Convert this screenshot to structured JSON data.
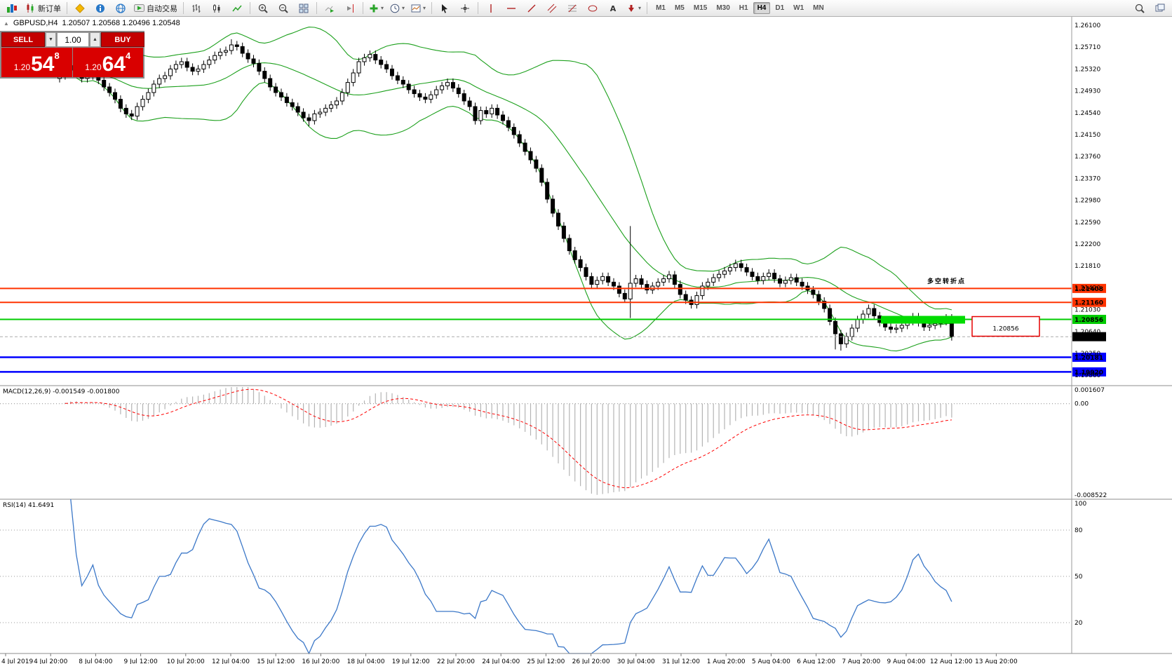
{
  "toolbar": {
    "new_order_label": "新订单",
    "autotrading_label": "自动交易",
    "timeframes": [
      "M1",
      "M5",
      "M15",
      "M30",
      "H1",
      "H4",
      "D1",
      "W1",
      "MN"
    ],
    "active_timeframe": "H4",
    "items": [
      {
        "icon": "app-icon",
        "name": "app-icon",
        "deco": true
      },
      {
        "icon": "new-order-icon",
        "name": "new-order-button",
        "label": "新订单"
      },
      {
        "sep": true
      },
      {
        "icon": "alert-icon",
        "name": "alert-icon-button"
      },
      {
        "icon": "news-icon",
        "name": "news-icon-button"
      },
      {
        "icon": "community-icon",
        "name": "community-icon-button"
      },
      {
        "icon": "autotrading-icon",
        "name": "autotrading-button",
        "label": "自动交易"
      },
      {
        "sep": true
      },
      {
        "icon": "bar-chart-icon",
        "name": "bar-chart-button"
      },
      {
        "icon": "candle-chart-icon",
        "name": "candlestick-chart-button"
      },
      {
        "icon": "line-chart-icon",
        "name": "line-chart-button"
      },
      {
        "sep": true
      },
      {
        "icon": "zoom-in-icon",
        "name": "zoom-in-button"
      },
      {
        "icon": "zoom-out-icon",
        "name": "zoom-out-button"
      },
      {
        "icon": "tile-windows-icon",
        "name": "tile-windows-button"
      },
      {
        "sep": true
      },
      {
        "icon": "auto-scroll-icon",
        "name": "auto-scroll-button"
      },
      {
        "icon": "chart-shift-icon",
        "name": "chart-shift-button"
      },
      {
        "sep": true
      },
      {
        "icon": "indicators-icon",
        "name": "indicators-button",
        "dd": true
      },
      {
        "icon": "periods-icon",
        "name": "periods-button",
        "dd": true
      },
      {
        "icon": "template-icon",
        "name": "templates-button",
        "dd": true
      },
      {
        "sep": true
      },
      {
        "icon": "cursor-icon",
        "name": "cursor-button"
      },
      {
        "icon": "crosshair-icon",
        "name": "crosshair-button"
      },
      {
        "sep": true
      },
      {
        "icon": "vline-icon",
        "name": "vertical-line-button"
      },
      {
        "icon": "hline-icon",
        "name": "horizontal-line-button"
      },
      {
        "icon": "trendline-icon",
        "name": "trendline-button"
      },
      {
        "icon": "channel-icon",
        "name": "channel-button"
      },
      {
        "icon": "fibo-icon",
        "name": "fibonacci-button"
      },
      {
        "icon": "shapes-icon",
        "name": "shapes-button"
      },
      {
        "icon": "text-icon",
        "name": "text-button"
      },
      {
        "icon": "arrows-icon",
        "name": "arrows-button",
        "dd": true
      },
      {
        "sep": true
      },
      {
        "tf": true
      },
      {
        "spacer": true
      },
      {
        "icon": "search-icon",
        "name": "search-button"
      },
      {
        "icon": "layout-icon",
        "name": "chart-layout-button"
      }
    ]
  },
  "chart": {
    "header": {
      "expander_glyph": "▲",
      "symbol": "GBPUSD,H4",
      "ohlc": "1.20507 1.20568 1.20496 1.20548"
    },
    "trade_panel": {
      "sell_label": "SELL",
      "buy_label": "BUY",
      "volume": "1.00",
      "spin_down_glyph": "▼",
      "spin_up_glyph": "▲",
      "sell_price_main": "1.20",
      "sell_price_big": "54",
      "sell_price_sup": "8",
      "buy_price_main": "1.20",
      "buy_price_big": "64",
      "buy_price_sup": "4",
      "button_color": "#C40000",
      "price_bg": "#D90000"
    },
    "annotation": {
      "text": "多空转折点",
      "color": "#00B400"
    },
    "callout": {
      "text": "1.20856",
      "color": "#E60000"
    },
    "highlight_box": {
      "value": 1.20856,
      "color": "#00DC00"
    },
    "levels": [
      {
        "value": 1.21408,
        "label": "1.21408",
        "color": "#FF3300",
        "width": 2
      },
      {
        "value": 1.2116,
        "label": "1.21160",
        "color": "#FF3300",
        "width": 2
      },
      {
        "value": 1.20856,
        "label": "1.20856",
        "color": "#00CC00",
        "width": 2
      },
      {
        "value": 1.20181,
        "label": "1.20181",
        "color": "#0000FF",
        "width": 2.5
      },
      {
        "value": 1.1992,
        "label": "1.19920",
        "color": "#0000FF",
        "width": 2.5
      }
    ],
    "current_price": {
      "value": 1.20548,
      "label": "1.20548"
    },
    "y_ticks": [
      "1.26100",
      "1.25710",
      "1.25320",
      "1.24930",
      "1.24540",
      "1.24150",
      "1.23760",
      "1.23370",
      "1.22980",
      "1.22590",
      "1.22200",
      "1.21810",
      "1.21420",
      "1.21030",
      "1.20640",
      "1.20250",
      "1.19860"
    ],
    "x_ticks": [
      "4 Jul 2019",
      "4 Jul 20:00",
      "8 Jul 04:00",
      "9 Jul 12:00",
      "10 Jul 20:00",
      "12 Jul 04:00",
      "15 Jul 12:00",
      "16 Jul 20:00",
      "18 Jul 04:00",
      "19 Jul 12:00",
      "22 Jul 20:00",
      "24 Jul 04:00",
      "25 Jul 12:00",
      "26 Jul 20:00",
      "30 Jul 04:00",
      "31 Jul 12:00",
      "1 Aug 20:00",
      "5 Aug 04:00",
      "6 Aug 12:00",
      "7 Aug 20:00",
      "9 Aug 04:00",
      "12 Aug 12:00",
      "13 Aug 20:00"
    ]
  },
  "macd": {
    "label": "MACD(12,26,9) -0.001549 -0.001800",
    "scale_top": "0.001607",
    "scale_zero": "0.00",
    "scale_bottom": "-0.008522",
    "top_value": 0.001607,
    "bottom_value": -0.008522
  },
  "rsi": {
    "label": "RSI(14) 41.6491",
    "scale": [
      "100",
      "80",
      "50",
      "20"
    ],
    "scale_values": [
      100,
      80,
      50,
      20
    ],
    "level_lines": [
      80,
      50,
      20
    ]
  },
  "chart_data": {
    "type": "candlestick",
    "symbol": "GBPUSD",
    "timeframe": "H4",
    "first_open": 1.2515,
    "default_wick": 0.0007,
    "closes": [
      1.252,
      1.253,
      1.2538,
      1.2528,
      1.2515,
      1.252,
      1.2528,
      1.2512,
      1.25,
      1.249,
      1.2478,
      1.2462,
      1.2452,
      1.2448,
      1.2465,
      1.2478,
      1.249,
      1.2505,
      1.2515,
      1.252,
      1.2532,
      1.254,
      1.2545,
      1.2535,
      1.2528,
      1.2532,
      1.254,
      1.2548,
      1.2556,
      1.2562,
      1.2565,
      1.2575,
      1.2572,
      1.256,
      1.255,
      1.2542,
      1.2528,
      1.2515,
      1.25,
      1.249,
      1.2482,
      1.2472,
      1.2465,
      1.2455,
      1.2445,
      1.244,
      1.2452,
      1.2455,
      1.2462,
      1.2468,
      1.2475,
      1.249,
      1.2508,
      1.2525,
      1.2545,
      1.2552,
      1.2558,
      1.2548,
      1.254,
      1.2532,
      1.252,
      1.2512,
      1.2505,
      1.2495,
      1.2488,
      1.2482,
      1.2478,
      1.2486,
      1.2495,
      1.2502,
      1.2508,
      1.2498,
      1.2488,
      1.2475,
      1.2465,
      1.244,
      1.2458,
      1.2452,
      1.2462,
      1.245,
      1.244,
      1.2428,
      1.2415,
      1.24,
      1.2385,
      1.237,
      1.2355,
      1.233,
      1.23,
      1.2275,
      1.2252,
      1.223,
      1.2208,
      1.2192,
      1.2178,
      1.2162,
      1.2148,
      1.2155,
      1.2162,
      1.2152,
      1.2145,
      1.2132,
      1.2122,
      1.215,
      1.2158,
      1.2148,
      1.2138,
      1.2145,
      1.2152,
      1.2158,
      1.2165,
      1.2148,
      1.213,
      1.212,
      1.2112,
      1.2128,
      1.2145,
      1.2152,
      1.216,
      1.2166,
      1.2172,
      1.2178,
      1.2185,
      1.2178,
      1.217,
      1.2162,
      1.2155,
      1.2162,
      1.2168,
      1.2158,
      1.215,
      1.2155,
      1.216,
      1.2152,
      1.2145,
      1.2138,
      1.213,
      1.2118,
      1.2105,
      1.2082,
      1.206,
      1.2042,
      1.2055,
      1.207,
      1.2085,
      1.2095,
      1.2105,
      1.2092,
      1.208,
      1.2072,
      1.2068,
      1.207,
      1.2075,
      1.2082,
      1.209,
      1.208,
      1.2072,
      1.2075,
      1.2078,
      1.2082,
      1.2088,
      1.20548
    ],
    "special_candles": {
      "31": {
        "high": 1.2585
      },
      "45": {
        "low": 1.243
      },
      "103": {
        "high": 1.2252,
        "low": 1.2088
      },
      "140": {
        "low": 1.2032
      },
      "141": {
        "low": 1.203
      }
    },
    "indicators": {
      "bollinger": {
        "period": 20,
        "deviation": 2
      },
      "macd": {
        "fast": 12,
        "slow": 26,
        "signal": 9
      },
      "rsi": {
        "period": 14
      }
    }
  },
  "colors": {
    "bollinger": "#1CA01C",
    "candle_up": "#FFFFFF",
    "candle_down": "#000000",
    "candle_stroke": "#000000",
    "macd_hist": "#B4B4B4",
    "macd_signal": "#FF0000",
    "rsi": "#3C78C8",
    "bid_line": "#AAAAAA",
    "level_red": "#FF3300",
    "level_green": "#00CC00",
    "level_blue": "#0000FF",
    "annotation": "#00B400",
    "callout": "#E60000",
    "highlight": "#00DC00",
    "tag_current_bg": "#000000",
    "separator": "#8C8C8C"
  }
}
